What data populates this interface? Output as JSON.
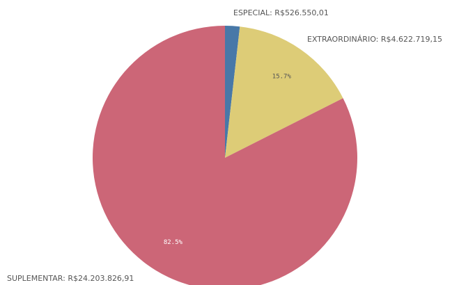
{
  "chart_data": {
    "type": "pie",
    "title": "",
    "legend": "none",
    "slices": [
      {
        "category": "ESPECIAL",
        "value": 526550.01,
        "label": "ESPECIAL: R$526.550,01",
        "percent_label": "",
        "color": "#4878a8"
      },
      {
        "category": "EXTRAORDINÁRIO",
        "value": 4622719.15,
        "label": "EXTRAORDINÁRIO: R$4.622.719,15",
        "percent_label": "15.7%",
        "color": "#ddcc77"
      },
      {
        "category": "SUPLEMENTAR",
        "value": 24203826.91,
        "label": "SUPLEMENTAR: R$24.203.826,91",
        "percent_label": "82.5%",
        "color": "#cc6677"
      }
    ],
    "label_color": "#555555",
    "pct_label_colors": [
      "#555555",
      "#555555",
      "#ffffff"
    ]
  }
}
